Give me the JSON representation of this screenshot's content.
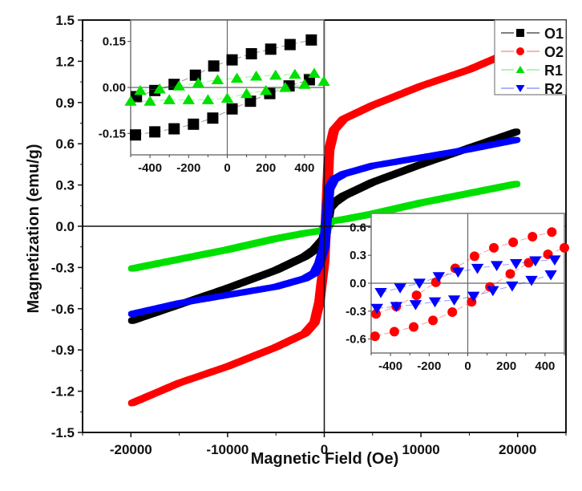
{
  "chart_data": {
    "type": "scatter",
    "title": "",
    "xlabel": "Magnetic Field (Oe)",
    "ylabel": "Magnetization (emu/g)",
    "xlim": [
      -25000,
      25000
    ],
    "ylim": [
      -1.5,
      1.5
    ],
    "xticks": [
      -20000,
      -10000,
      0,
      10000,
      20000
    ],
    "xtick_labels": [
      "-20000",
      "-10000",
      "0",
      "10000",
      "20000"
    ],
    "yticks": [
      -1.5,
      -1.2,
      -0.9,
      -0.6,
      -0.3,
      0.0,
      0.3,
      0.6,
      0.9,
      1.2,
      1.5
    ],
    "ytick_labels": [
      "-1.5",
      "-1.2",
      "-0.9",
      "-0.6",
      "-0.3",
      "0.0",
      "0.3",
      "0.6",
      "0.9",
      "1.2",
      "1.5"
    ],
    "grid": false,
    "legend_position": "top-right",
    "series": [
      {
        "name": "O1",
        "color": "#000000",
        "marker": "square",
        "Ms_at_20000": 0.69,
        "M_at_minus20000": -0.69,
        "upper_branch_at_0": 0.09,
        "lower_branch_at_0": -0.09
      },
      {
        "name": "O2",
        "color": "#ff0000",
        "marker": "circle",
        "Ms_at_20000": 1.29,
        "M_at_minus20000": -1.29,
        "upper_branch_at_0": 0.25,
        "lower_branch_at_0": -0.25
      },
      {
        "name": "R1",
        "color": "#00e000",
        "marker": "triangle-up",
        "Ms_at_20000": 0.31,
        "M_at_minus20000": -0.31,
        "upper_branch_at_0": 0.03,
        "lower_branch_at_0": -0.03
      },
      {
        "name": "R2",
        "color": "#0000ff",
        "marker": "triangle-down",
        "Ms_at_20000": 0.63,
        "M_at_minus20000": -0.64,
        "upper_branch_at_0": 0.15,
        "lower_branch_at_0": -0.15
      }
    ],
    "main_curves": {
      "x": [
        -20000,
        -15000,
        -10000,
        -5000,
        -2000,
        -1000,
        -500,
        0,
        500,
        1000,
        2000,
        5000,
        10000,
        15000,
        20000
      ],
      "O1": [
        -0.69,
        -0.57,
        -0.45,
        -0.32,
        -0.22,
        -0.17,
        -0.13,
        -0.09,
        0.13,
        0.17,
        0.22,
        0.32,
        0.45,
        0.57,
        0.69
      ],
      "O2": [
        -1.29,
        -1.14,
        -1.02,
        -0.88,
        -0.78,
        -0.7,
        -0.55,
        -0.25,
        0.55,
        0.7,
        0.78,
        0.88,
        1.02,
        1.14,
        1.29
      ],
      "R1": [
        -0.31,
        -0.24,
        -0.17,
        -0.09,
        -0.05,
        -0.04,
        -0.035,
        -0.03,
        0.035,
        0.04,
        0.05,
        0.09,
        0.17,
        0.24,
        0.31
      ],
      "R2": [
        -0.64,
        -0.56,
        -0.5,
        -0.44,
        -0.38,
        -0.34,
        -0.27,
        -0.15,
        0.27,
        0.34,
        0.38,
        0.44,
        0.5,
        0.56,
        0.63
      ]
    },
    "insets": [
      {
        "name": "inset-top-left",
        "series_shown": [
          "O1",
          "R1"
        ],
        "xlim": [
          -500,
          500
        ],
        "ylim": [
          -0.22,
          0.22
        ],
        "xticks": [
          -400,
          -200,
          0,
          200,
          400
        ],
        "xtick_labels": [
          "-400",
          "-200",
          "0",
          "200",
          "400"
        ],
        "yticks": [
          -0.15,
          0.0,
          0.15
        ],
        "ytick_labels": [
          "-0.15",
          "0.00",
          "0.15"
        ],
        "data": {
          "O1_upper": {
            "x": [
              -470,
              -375,
              -275,
              -165,
              -70,
              25,
              125,
              225,
              325,
              435
            ],
            "y": [
              -0.03,
              -0.01,
              0.01,
              0.04,
              0.07,
              0.09,
              0.11,
              0.125,
              0.14,
              0.155
            ]
          },
          "O1_lower": {
            "x": [
              -475,
              -375,
              -275,
              -175,
              -75,
              25,
              120,
              220,
              320,
              425
            ],
            "y": [
              -0.155,
              -0.145,
              -0.135,
              -0.12,
              -0.1,
              -0.07,
              -0.045,
              -0.02,
              0.005,
              0.025
            ]
          },
          "R1_upper": {
            "x": [
              -450,
              -350,
              -250,
              -150,
              -50,
              50,
              150,
              250,
              350,
              450,
              500
            ],
            "y": [
              -0.01,
              -0.005,
              0.005,
              0.015,
              0.025,
              0.03,
              0.037,
              0.04,
              0.043,
              0.046,
              0.02
            ]
          },
          "R1_lower": {
            "x": [
              -500,
              -400,
              -300,
              -200,
              -100,
              0,
              100,
              200,
              300,
              400
            ],
            "y": [
              -0.045,
              -0.045,
              -0.04,
              -0.04,
              -0.04,
              -0.035,
              -0.02,
              -0.01,
              0.0,
              0.01
            ]
          }
        }
      },
      {
        "name": "inset-bottom-right",
        "series_shown": [
          "O2",
          "R2"
        ],
        "xlim": [
          -500,
          500
        ],
        "ylim": [
          -0.75,
          0.75
        ],
        "xticks": [
          -400,
          -200,
          0,
          200,
          400
        ],
        "xtick_labels": [
          "-400",
          "-200",
          "0",
          "200",
          "400"
        ],
        "yticks": [
          -0.6,
          -0.3,
          0.0,
          0.3,
          0.6
        ],
        "ytick_labels": [
          "-0.6",
          "-0.3",
          "0.0",
          "0.3",
          "0.6"
        ],
        "data": {
          "O2_upper": {
            "x": [
              -475,
              -370,
              -265,
              -165,
              -65,
              35,
              135,
              235,
              335,
              435
            ],
            "y": [
              -0.33,
              -0.25,
              -0.13,
              0.01,
              0.16,
              0.29,
              0.38,
              0.44,
              0.5,
              0.55
            ]
          },
          "O2_lower": {
            "x": [
              -480,
              -380,
              -280,
              -180,
              -80,
              20,
              115,
              220,
              315,
              415,
              500
            ],
            "y": [
              -0.57,
              -0.52,
              -0.47,
              -0.4,
              -0.31,
              -0.2,
              -0.04,
              0.1,
              0.22,
              0.31,
              0.38
            ]
          },
          "R2_upper": {
            "x": [
              -450,
              -350,
              -250,
              -150,
              -50,
              50,
              150,
              250,
              350,
              450
            ],
            "y": [
              -0.1,
              -0.05,
              0.0,
              0.07,
              0.12,
              0.16,
              0.19,
              0.21,
              0.24,
              0.25
            ]
          },
          "R2_lower": {
            "x": [
              -470,
              -370,
              -270,
              -170,
              -70,
              30,
              130,
              230,
              330,
              430
            ],
            "y": [
              -0.27,
              -0.25,
              -0.23,
              -0.2,
              -0.18,
              -0.14,
              -0.08,
              -0.03,
              0.03,
              0.09
            ]
          }
        }
      }
    ]
  },
  "legend": {
    "entries": [
      {
        "label": "O1",
        "color": "#000000",
        "marker": "square"
      },
      {
        "label": "O2",
        "color": "#ff0000",
        "marker": "circle"
      },
      {
        "label": "R1",
        "color": "#00e000",
        "marker": "triangle-up"
      },
      {
        "label": "R2",
        "color": "#0000ff",
        "marker": "triangle-down"
      }
    ]
  }
}
